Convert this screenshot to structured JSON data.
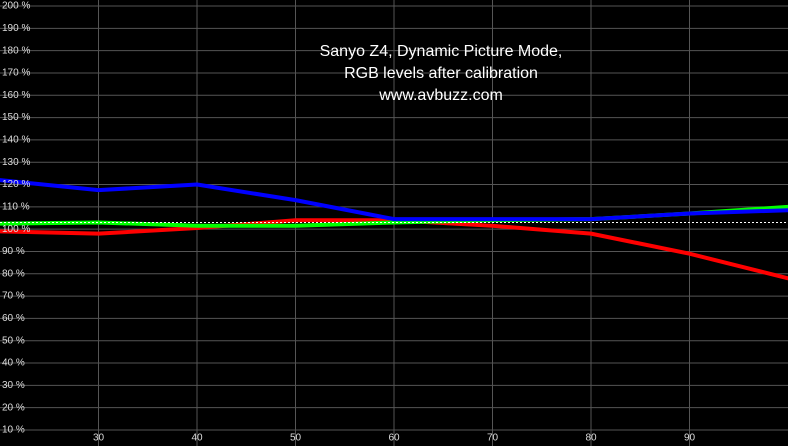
{
  "chart_data": {
    "type": "line",
    "title_lines": [
      "Sanyo Z4, Dynamic Picture Mode,",
      "RGB levels after calibration",
      "www.avbuzz.com"
    ],
    "x": [
      20,
      30,
      40,
      50,
      60,
      70,
      80,
      90,
      100
    ],
    "series": [
      {
        "name": "Red",
        "color": "#ff0000",
        "values": [
          99,
          98,
          100.5,
          104,
          104,
          101.5,
          98,
          89,
          78
        ]
      },
      {
        "name": "Green",
        "color": "#00ff00",
        "values": [
          102.5,
          103,
          101.5,
          101.5,
          103,
          104,
          104.5,
          107,
          110
        ]
      },
      {
        "name": "Blue",
        "color": "#0000ff",
        "values": [
          122,
          117.5,
          120,
          113,
          104.5,
          104.5,
          104.5,
          107,
          108.5
        ]
      }
    ],
    "reference_line": 103,
    "xlim": [
      20,
      100
    ],
    "xticks": [
      30,
      40,
      50,
      60,
      70,
      80,
      90
    ],
    "ylim": [
      10,
      200
    ],
    "yticks": [
      {
        "value": 10,
        "label": "10 %"
      },
      {
        "value": 20,
        "label": "20 %"
      },
      {
        "value": 30,
        "label": "30 %"
      },
      {
        "value": 40,
        "label": "40 %"
      },
      {
        "value": 50,
        "label": "50 %"
      },
      {
        "value": 60,
        "label": "60 %"
      },
      {
        "value": 70,
        "label": "70 %"
      },
      {
        "value": 80,
        "label": "80 %"
      },
      {
        "value": 90,
        "label": "90 %"
      },
      {
        "value": 100,
        "label": "100 %"
      },
      {
        "value": 110,
        "label": "110 %"
      },
      {
        "value": 120,
        "label": "120 %"
      },
      {
        "value": 130,
        "label": "130 %"
      },
      {
        "value": 140,
        "label": "140 %"
      },
      {
        "value": 150,
        "label": "150 %"
      },
      {
        "value": 160,
        "label": "160 %"
      },
      {
        "value": 170,
        "label": "170 %"
      },
      {
        "value": 180,
        "label": "180 %"
      },
      {
        "value": 190,
        "label": "190 %"
      },
      {
        "value": 200,
        "label": "200 %"
      }
    ],
    "grid": true
  }
}
